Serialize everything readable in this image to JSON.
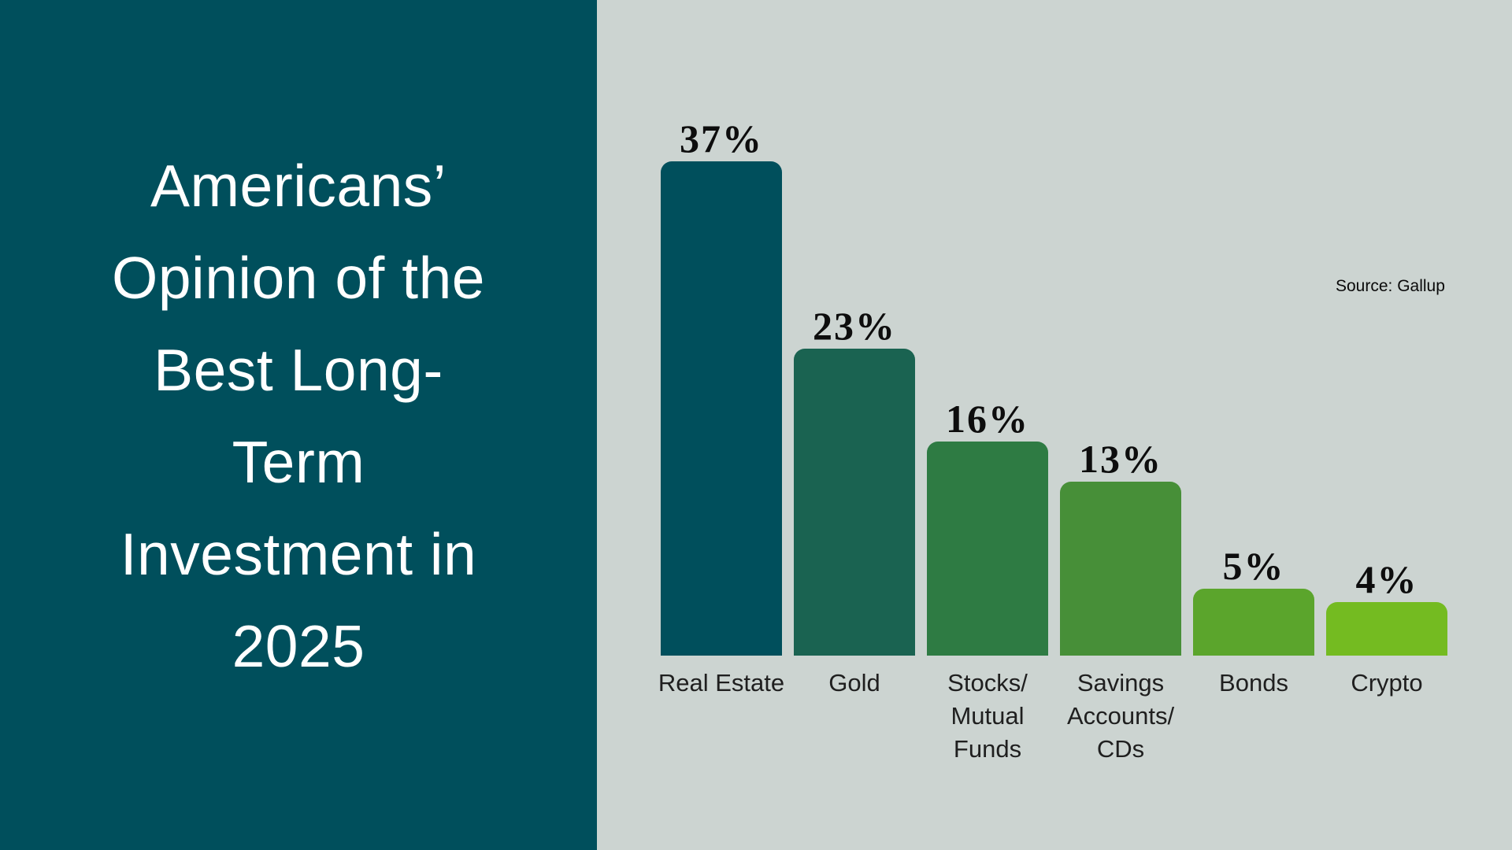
{
  "left_panel": {
    "background_color": "#004f5c",
    "text_color": "#ffffff",
    "title_lines": [
      "Americans’",
      "Opinion of the",
      "Best Long-",
      "Term",
      "Investment in",
      "2025"
    ]
  },
  "chart": {
    "background_color": "#ccd4d1",
    "source_note": "Source: Gallup"
  },
  "chart_data": {
    "type": "bar",
    "title": "Americans’ Opinion of the Best Long-Term Investment in 2025",
    "categories": [
      "Real Estate",
      "Gold",
      "Stocks/\nMutual\nFunds",
      "Savings\nAccounts/\nCDs",
      "Bonds",
      "Crypto"
    ],
    "values": [
      37,
      23,
      16,
      13,
      5,
      4
    ],
    "value_labels": [
      "37%",
      "23%",
      "16%",
      "13%",
      "5%",
      "4%"
    ],
    "bar_colors": [
      "#004f5c",
      "#1a6351",
      "#2e7b43",
      "#478f38",
      "#5ba52c",
      "#74bb21"
    ],
    "unit": "%",
    "ylim": [
      0,
      40
    ],
    "grid": false,
    "legend": "none",
    "source": "Source: Gallup"
  }
}
